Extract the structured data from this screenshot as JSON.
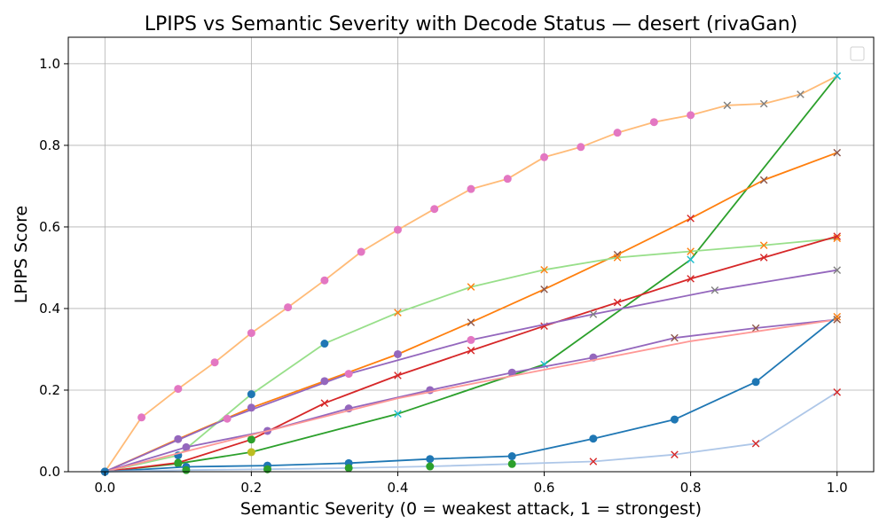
{
  "chart_data": {
    "type": "line",
    "title": "LPIPS vs Semantic Severity with Decode Status — desert (rivaGan)",
    "xlabel": "Semantic Severity (0 = weakest attack, 1 = strongest)",
    "ylabel": "LPIPS Score",
    "xlim": [
      -0.05,
      1.05
    ],
    "ylim": [
      0,
      1.065
    ],
    "xticks": [
      "0.0",
      "0.2",
      "0.4",
      "0.6",
      "0.8",
      "1.0"
    ],
    "yticks": [
      "0.0",
      "0.2",
      "0.4",
      "0.6",
      "0.8",
      "1.0"
    ],
    "grid": true,
    "legend": "top-right (empty)",
    "series": [
      {
        "color": "#ffbb78",
        "x": [
          0,
          0.05,
          0.1,
          0.15,
          0.2,
          0.25,
          0.3,
          0.35,
          0.4,
          0.45,
          0.5,
          0.55,
          0.6,
          0.65,
          0.7,
          0.75,
          0.8,
          0.85,
          0.9,
          0.95,
          1.0
        ],
        "y": [
          0,
          0.133,
          0.203,
          0.268,
          0.34,
          0.403,
          0.469,
          0.539,
          0.593,
          0.644,
          0.693,
          0.718,
          0.771,
          0.796,
          0.831,
          0.857,
          0.874,
          0.898,
          0.902,
          0.925,
          0.97
        ],
        "markers": [
          "o:#e377c2",
          "o:#e377c2",
          "o:#e377c2",
          "o:#e377c2",
          "o:#e377c2",
          "o:#e377c2",
          "o:#e377c2",
          "o:#e377c2",
          "o:#e377c2",
          "o:#e377c2",
          "o:#e377c2",
          "o:#e377c2",
          "o:#e377c2",
          "o:#e377c2",
          "o:#e377c2",
          "o:#e377c2",
          "o:#e377c2",
          "x:#7f7f7f",
          "x:#7f7f7f",
          "x:#7f7f7f",
          "x:#17becf"
        ]
      },
      {
        "color": "#2ca02c",
        "x": [
          0,
          0.1,
          0.2,
          0.4,
          0.6,
          0.8,
          1.0
        ],
        "y": [
          0,
          0.02,
          0.048,
          0.142,
          0.263,
          0.52,
          0.97
        ],
        "markers": [
          "o:#1f77b4",
          "o:#2ca02c",
          "o:#bcbd22",
          "x:#17becf",
          "x:#17becf",
          "x:#17becf",
          "x:#17becf"
        ]
      },
      {
        "color": "#ff7f0e",
        "x": [
          0,
          0.1,
          0.2,
          0.3,
          0.4,
          0.5,
          0.6,
          0.7,
          0.8,
          0.9,
          1.0
        ],
        "y": [
          0,
          0.08,
          0.157,
          0.222,
          0.288,
          0.366,
          0.447,
          0.532,
          0.621,
          0.715,
          0.782
        ],
        "markers": [
          "o:#1f77b4",
          "o:#9467bd",
          "o:#9467bd",
          "o:#9467bd",
          "o:#9467bd",
          "x:#8c564b",
          "x:#8c564b",
          "x:#8c564b",
          "x:#d62728",
          "x:#8c564b",
          "x:#8c564b"
        ]
      },
      {
        "color": "#98df8a",
        "x": [
          0,
          0.1,
          0.2,
          0.3,
          0.4,
          0.5,
          0.6,
          0.7,
          0.8,
          0.9,
          1.0
        ],
        "y": [
          0,
          0.04,
          0.19,
          0.314,
          0.39,
          0.453,
          0.495,
          0.525,
          0.54,
          0.555,
          0.572
        ],
        "markers": [
          "o:#1f77b4",
          "o:#1f77b4",
          "o:#1f77b4",
          "o:#1f77b4",
          "x:#ff7f0e",
          "x:#ff7f0e",
          "x:#ff7f0e",
          "x:#ff7f0e",
          "x:#ff7f0e",
          "x:#ff7f0e",
          "x:#ff7f0e"
        ]
      },
      {
        "color": "#d62728",
        "x": [
          0,
          0.1,
          0.2,
          0.3,
          0.4,
          0.5,
          0.6,
          0.7,
          0.8,
          0.9,
          1.0
        ],
        "y": [
          0,
          0.022,
          0.079,
          0.168,
          0.236,
          0.297,
          0.357,
          0.415,
          0.473,
          0.525,
          0.577
        ],
        "markers": [
          "o:#1f77b4",
          "o:#2ca02c",
          "o:#2ca02c",
          "x:#d62728",
          "x:#d62728",
          "x:#d62728",
          "x:#d62728",
          "x:#d62728",
          "x:#d62728",
          "x:#d62728",
          "x:#d62728"
        ]
      },
      {
        "color": "#9467bd",
        "x": [
          0,
          0.111,
          0.222,
          0.333,
          0.444,
          0.556,
          0.667,
          0.778,
          0.889,
          1.0
        ],
        "y": [
          0,
          0.06,
          0.1,
          0.155,
          0.2,
          0.243,
          0.28,
          0.328,
          0.352,
          0.373
        ],
        "markers": [
          "o:#1f77b4",
          "o:#9467bd",
          "o:#9467bd",
          "o:#9467bd",
          "o:#9467bd",
          "o:#9467bd",
          "o:#9467bd",
          "x:#8c564b",
          "x:#8c564b",
          "x:#ff7f0e"
        ]
      },
      {
        "color": "#9467bd",
        "x": [
          0,
          0.167,
          0.333,
          0.5,
          0.667,
          0.833,
          1.0
        ],
        "y": [
          0,
          0.13,
          0.24,
          0.323,
          0.386,
          0.445,
          0.494
        ],
        "markers": [
          "o:#1f77b4",
          "o:#e377c2",
          "o:#e377c2",
          "o:#e377c2",
          "x:#7f7f7f",
          "x:#7f7f7f",
          "x:#7f7f7f"
        ]
      },
      {
        "color": "#ff9896",
        "x": [
          0,
          0.2,
          0.4,
          0.6,
          0.8,
          1.0
        ],
        "y": [
          0,
          0.09,
          0.18,
          0.25,
          0.32,
          0.373
        ],
        "markers": [
          "o:#1f77b4",
          "none",
          "none",
          "none",
          "none",
          "x:#8c564b"
        ]
      },
      {
        "color": "#1f77b4",
        "x": [
          0,
          0.111,
          0.222,
          0.333,
          0.444,
          0.556,
          0.667,
          0.778,
          0.889,
          1.0
        ],
        "y": [
          0,
          0.012,
          0.015,
          0.021,
          0.031,
          0.038,
          0.081,
          0.128,
          0.22,
          0.38
        ],
        "markers": [
          "o:#1f77b4",
          "o:#1f77b4",
          "o:#1f77b4",
          "o:#1f77b4",
          "o:#1f77b4",
          "o:#1f77b4",
          "o:#1f77b4",
          "o:#1f77b4",
          "o:#1f77b4",
          "x:#ff7f0e"
        ]
      },
      {
        "color": "#aec7e8",
        "x": [
          0,
          0.111,
          0.222,
          0.333,
          0.444,
          0.556,
          0.667,
          0.778,
          0.889,
          1.0
        ],
        "y": [
          0,
          0.004,
          0.006,
          0.009,
          0.013,
          0.019,
          0.025,
          0.042,
          0.069,
          0.195
        ],
        "markers": [
          "o:#1f77b4",
          "o:#2ca02c",
          "o:#2ca02c",
          "o:#2ca02c",
          "o:#2ca02c",
          "o:#2ca02c",
          "x:#d62728",
          "x:#d62728",
          "x:#d62728",
          "x:#d62728"
        ]
      }
    ]
  }
}
